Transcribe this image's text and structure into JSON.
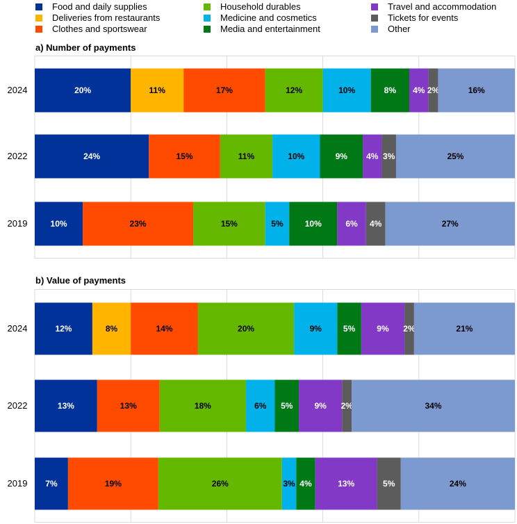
{
  "legend": [
    {
      "key": "food",
      "label": "Food and daily supplies",
      "color": "#003299"
    },
    {
      "key": "deliveries",
      "label": "Deliveries from restaurants",
      "color": "#FFB400"
    },
    {
      "key": "clothes",
      "label": "Clothes and sportswear",
      "color": "#FF4B00"
    },
    {
      "key": "household",
      "label": "Household durables",
      "color": "#65B800"
    },
    {
      "key": "medicine",
      "label": "Medicine and cosmetics",
      "color": "#00B1EA"
    },
    {
      "key": "media",
      "label": "Media and entertainment",
      "color": "#007816"
    },
    {
      "key": "travel",
      "label": "Travel and accommodation",
      "color": "#8139C6"
    },
    {
      "key": "tickets",
      "label": "Tickets for events",
      "color": "#5C5C5C"
    },
    {
      "key": "other",
      "label": "Other",
      "color": "#7D9AD0"
    }
  ],
  "chart_data": [
    {
      "type": "bar",
      "orientation": "horizontal",
      "stacked": true,
      "title": "a) Number of payments",
      "xlim": [
        0,
        100
      ],
      "grid": true,
      "legend_position": "top",
      "categories": [
        "2024",
        "2022",
        "2019"
      ],
      "series": [
        {
          "name": "Food and daily supplies",
          "values": [
            20,
            24,
            10
          ]
        },
        {
          "name": "Deliveries from restaurants",
          "values": [
            11,
            null,
            null
          ]
        },
        {
          "name": "Clothes and sportswear",
          "values": [
            17,
            15,
            23
          ]
        },
        {
          "name": "Household durables",
          "values": [
            12,
            11,
            15
          ]
        },
        {
          "name": "Medicine and cosmetics",
          "values": [
            10,
            10,
            5
          ]
        },
        {
          "name": "Media and entertainment",
          "values": [
            8,
            9,
            10
          ]
        },
        {
          "name": "Travel and accommodation",
          "values": [
            4,
            4,
            6
          ]
        },
        {
          "name": "Tickets for events",
          "values": [
            2,
            3,
            4
          ]
        },
        {
          "name": "Other",
          "values": [
            16,
            25,
            27
          ]
        }
      ]
    },
    {
      "type": "bar",
      "orientation": "horizontal",
      "stacked": true,
      "title": "b) Value of payments",
      "xlim": [
        0,
        100
      ],
      "grid": true,
      "legend_position": "top",
      "categories": [
        "2024",
        "2022",
        "2019"
      ],
      "series": [
        {
          "name": "Food and daily supplies",
          "values": [
            12,
            13,
            7
          ]
        },
        {
          "name": "Deliveries from restaurants",
          "values": [
            8,
            null,
            null
          ]
        },
        {
          "name": "Clothes and sportswear",
          "values": [
            14,
            13,
            19
          ]
        },
        {
          "name": "Household durables",
          "values": [
            20,
            18,
            26
          ]
        },
        {
          "name": "Medicine and cosmetics",
          "values": [
            9,
            6,
            3
          ]
        },
        {
          "name": "Media and entertainment",
          "values": [
            5,
            5,
            4
          ]
        },
        {
          "name": "Travel and accommodation",
          "values": [
            9,
            9,
            13
          ]
        },
        {
          "name": "Tickets for events",
          "values": [
            2,
            2,
            5
          ]
        },
        {
          "name": "Other",
          "values": [
            21,
            34,
            24
          ]
        }
      ]
    }
  ]
}
